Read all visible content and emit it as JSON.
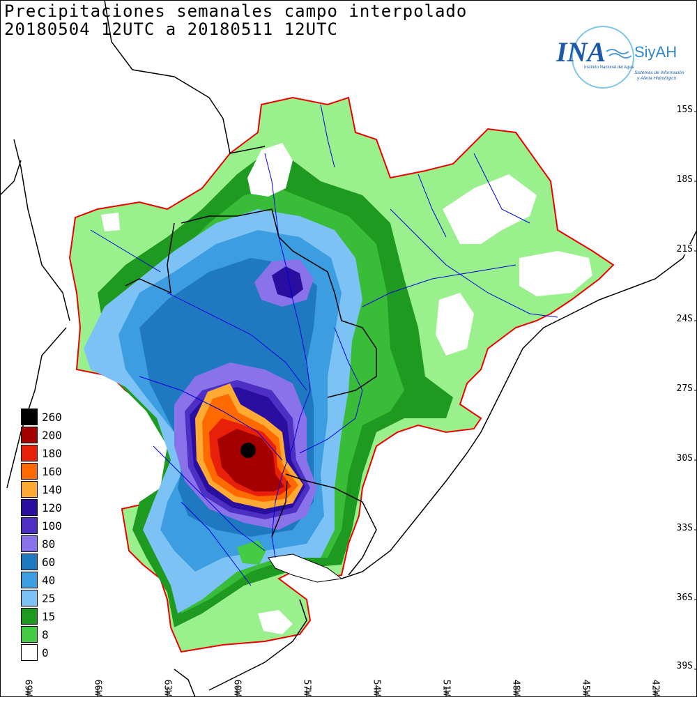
{
  "title": {
    "line1": "Precipitaciones semanales campo interpolado",
    "line2": "20180504 12UTC a 20180511 12UTC"
  },
  "logo": {
    "name": "INA",
    "brand": "SiyAH",
    "org": "Instituto Nacional del Agua",
    "tagline1": "Sistemas de Información",
    "tagline2": "y Alerta Hidrológico"
  },
  "lat_labels": [
    "15S",
    "18S",
    "21S",
    "24S",
    "27S",
    "30S",
    "33S",
    "36S",
    "39S"
  ],
  "lon_labels": [
    "69W",
    "66W",
    "63W",
    "60W",
    "57W",
    "54W",
    "51W",
    "48W",
    "45W",
    "42W"
  ],
  "legend": [
    {
      "label": "260",
      "color": "#000000"
    },
    {
      "label": "200",
      "color": "#a50000"
    },
    {
      "label": "180",
      "color": "#e8200a"
    },
    {
      "label": "160",
      "color": "#ff6a00"
    },
    {
      "label": "140",
      "color": "#ffaa33"
    },
    {
      "label": "120",
      "color": "#2a0ea0"
    },
    {
      "label": "100",
      "color": "#4e2fc4"
    },
    {
      "label": "80",
      "color": "#8a73ea"
    },
    {
      "label": "60",
      "color": "#1f79c0"
    },
    {
      "label": "40",
      "color": "#3c9de0"
    },
    {
      "label": "25",
      "color": "#7cc2f4"
    },
    {
      "label": "15",
      "color": "#1e9a20"
    },
    {
      "label": "8",
      "color": "#44cc44"
    },
    {
      "label": "0",
      "color": "#ffffff"
    }
  ],
  "colors": {
    "light_green": "#9af08c",
    "basin_border": "#ee0000",
    "rivers": "#0000dd",
    "countries": "#000000",
    "grid": "#000000"
  }
}
